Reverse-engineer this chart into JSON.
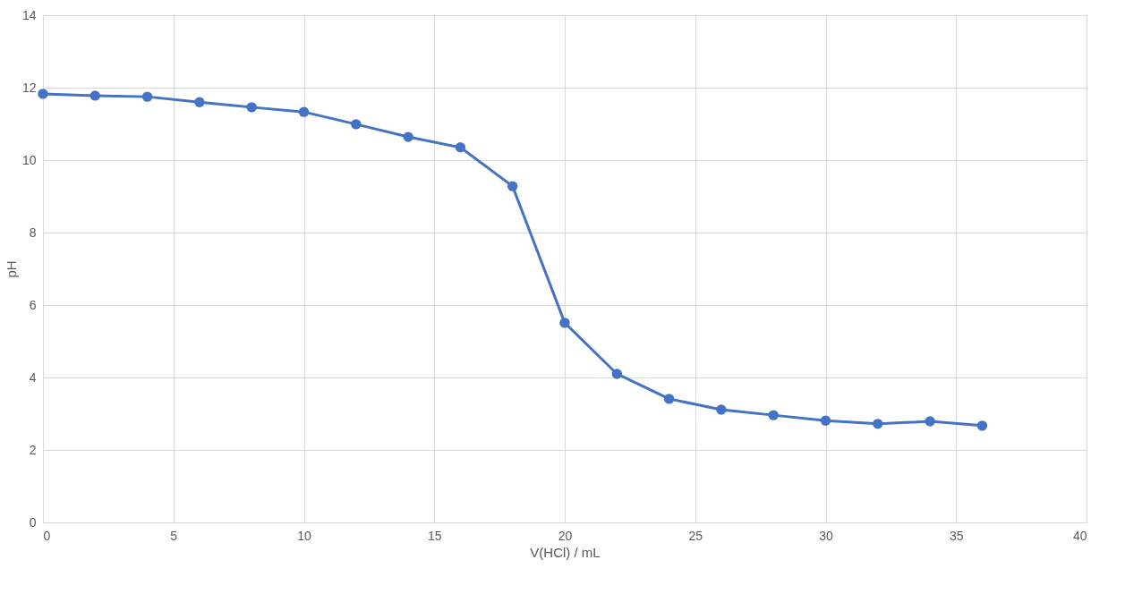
{
  "chart_data": {
    "type": "line",
    "xlabel": "V(HCl) / mL",
    "ylabel": "pH",
    "x": [
      0,
      2,
      4,
      6,
      8,
      10,
      12,
      14,
      16,
      18,
      20,
      22,
      24,
      26,
      28,
      30,
      32,
      34,
      36
    ],
    "series": [
      {
        "color": "#4472c4",
        "values": [
          11.83,
          11.78,
          11.75,
          11.6,
          11.46,
          11.33,
          10.99,
          10.64,
          10.35,
          9.28,
          5.51,
          4.1,
          3.41,
          3.11,
          2.96,
          2.81,
          2.72,
          2.79,
          2.67
        ]
      }
    ],
    "xlim": [
      0,
      40
    ],
    "xticks": [
      0,
      5,
      10,
      15,
      20,
      25,
      30,
      35,
      40
    ],
    "ylim": [
      0,
      14
    ],
    "yticks": [
      0,
      2,
      4,
      6,
      8,
      10,
      12,
      14
    ],
    "grid": true,
    "marker": "circle",
    "line_style": "solid"
  }
}
